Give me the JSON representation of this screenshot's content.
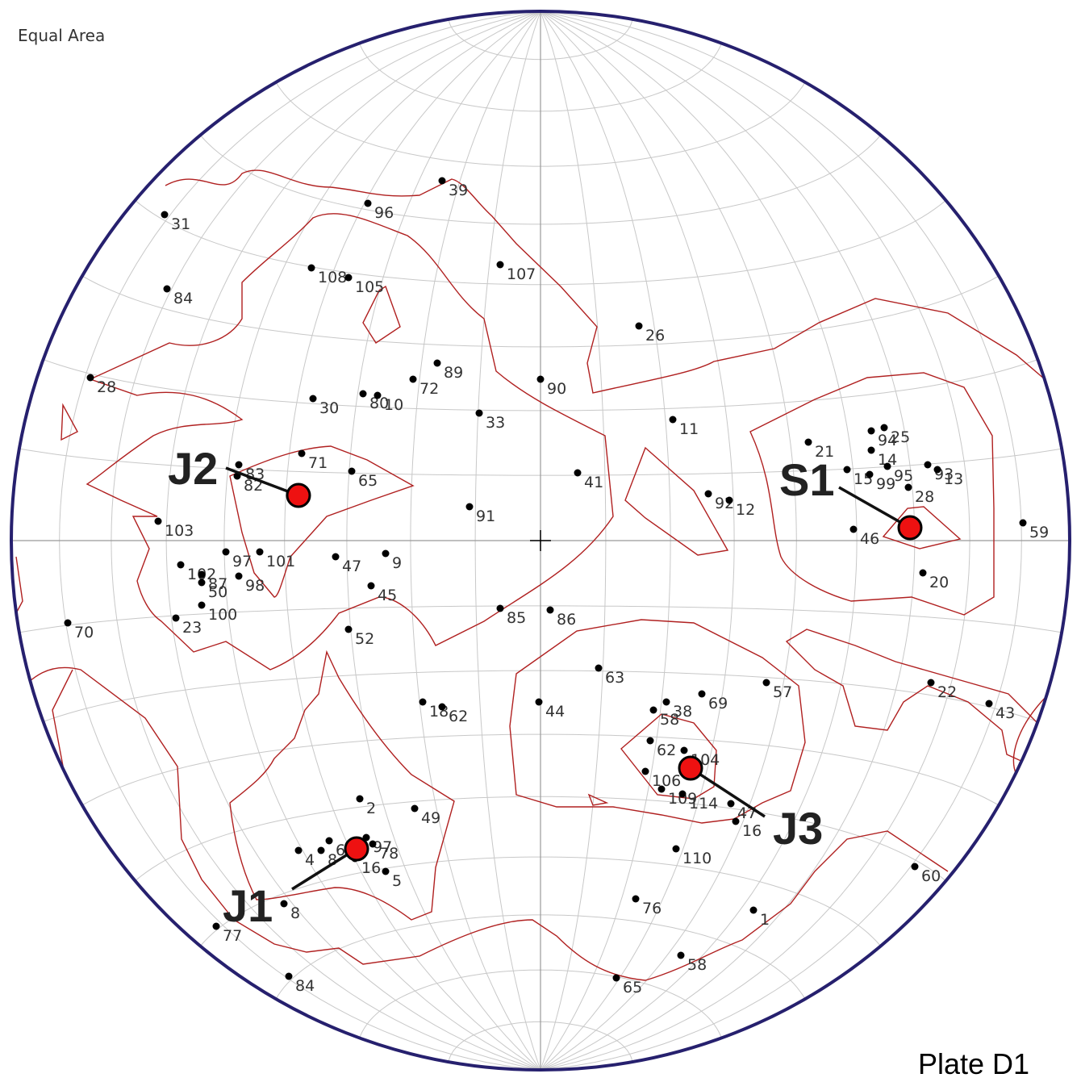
{
  "header": {
    "projection_label": "Equal Area"
  },
  "footer": {
    "plate_label": "Plate D1"
  },
  "colors": {
    "net": "#c8c8c8",
    "primitive": "#26206e",
    "contour": "#b02020",
    "pole": "#000000",
    "set_marker": "#ee1111"
  },
  "set_markers": [
    {
      "label": "J1"
    },
    {
      "label": "J2"
    },
    {
      "label": "J3"
    },
    {
      "label": "S1"
    }
  ],
  "poles": [
    {
      "label": "39"
    },
    {
      "label": "96"
    },
    {
      "label": "31"
    },
    {
      "label": "84"
    },
    {
      "label": "108"
    },
    {
      "label": "105"
    },
    {
      "label": "107"
    },
    {
      "label": "26"
    },
    {
      "label": "28"
    },
    {
      "label": "89"
    },
    {
      "label": "72"
    },
    {
      "label": "90"
    },
    {
      "label": "30"
    },
    {
      "label": "80"
    },
    {
      "label": "10"
    },
    {
      "label": "33"
    },
    {
      "label": "11"
    },
    {
      "label": "71"
    },
    {
      "label": "83"
    },
    {
      "label": "82"
    },
    {
      "label": "65"
    },
    {
      "label": "41"
    },
    {
      "label": "91"
    },
    {
      "label": "92"
    },
    {
      "label": "12"
    },
    {
      "label": "21"
    },
    {
      "label": "94"
    },
    {
      "label": "25"
    },
    {
      "label": "14"
    },
    {
      "label": "15"
    },
    {
      "label": "99"
    },
    {
      "label": "95"
    },
    {
      "label": "93"
    },
    {
      "label": "13"
    },
    {
      "label": "28"
    },
    {
      "label": "46"
    },
    {
      "label": "59"
    },
    {
      "label": "103"
    },
    {
      "label": "97"
    },
    {
      "label": "101"
    },
    {
      "label": "47"
    },
    {
      "label": "9"
    },
    {
      "label": "102"
    },
    {
      "label": "87"
    },
    {
      "label": "50"
    },
    {
      "label": "98"
    },
    {
      "label": "45"
    },
    {
      "label": "20"
    },
    {
      "label": "100"
    },
    {
      "label": "23"
    },
    {
      "label": "70"
    },
    {
      "label": "52"
    },
    {
      "label": "85"
    },
    {
      "label": "86"
    },
    {
      "label": "63"
    },
    {
      "label": "57"
    },
    {
      "label": "22"
    },
    {
      "label": "43"
    },
    {
      "label": "18"
    },
    {
      "label": "62"
    },
    {
      "label": "44"
    },
    {
      "label": "58"
    },
    {
      "label": "38"
    },
    {
      "label": "69"
    },
    {
      "label": "62"
    },
    {
      "label": "104"
    },
    {
      "label": "106"
    },
    {
      "label": "109"
    },
    {
      "label": "114"
    },
    {
      "label": "47"
    },
    {
      "label": "16"
    },
    {
      "label": "2"
    },
    {
      "label": "49"
    },
    {
      "label": "4"
    },
    {
      "label": "8"
    },
    {
      "label": "97"
    },
    {
      "label": "78"
    },
    {
      "label": "6"
    },
    {
      "label": "16"
    },
    {
      "label": "5"
    },
    {
      "label": "110"
    },
    {
      "label": "60"
    },
    {
      "label": "8"
    },
    {
      "label": "76"
    },
    {
      "label": "1"
    },
    {
      "label": "77"
    },
    {
      "label": "58"
    },
    {
      "label": "84"
    },
    {
      "label": "65"
    }
  ]
}
